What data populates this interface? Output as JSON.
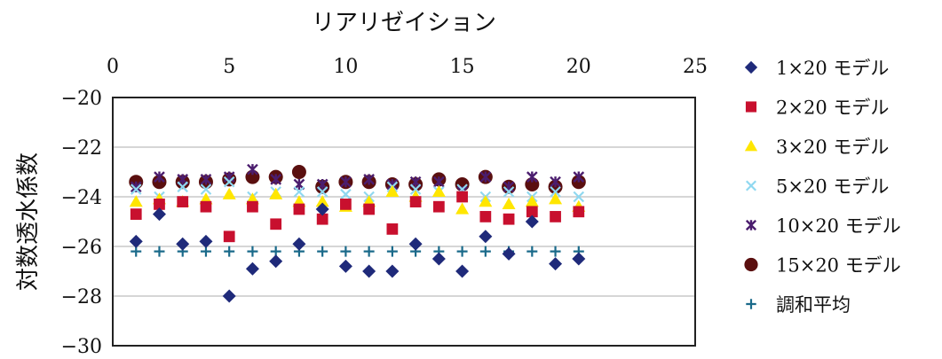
{
  "chart_data": {
    "type": "scatter",
    "title": "",
    "xlabel": "リアリゼイション",
    "ylabel": "対数透水係数",
    "xlim": [
      0,
      25
    ],
    "ylim": [
      -30,
      -20
    ],
    "x_ticks": [
      "0",
      "5",
      "10",
      "15",
      "20",
      "25"
    ],
    "y_ticks": [
      "-20",
      "-22",
      "-24",
      "-26",
      "-28",
      "-30"
    ],
    "x_axis_position": "top",
    "grid": "horizontal",
    "legend_position": "right",
    "x": [
      1,
      2,
      3,
      4,
      5,
      6,
      7,
      8,
      9,
      10,
      11,
      12,
      13,
      14,
      15,
      16,
      17,
      18,
      19,
      20
    ],
    "series": [
      {
        "name": "1×20 モデル",
        "marker": "diamond",
        "color": "#1f2a7a",
        "values": [
          -25.8,
          -24.7,
          -25.9,
          -25.8,
          -28.0,
          -26.9,
          -26.6,
          -25.9,
          -24.5,
          -26.8,
          -27.0,
          -27.0,
          -25.9,
          -26.5,
          -27.0,
          -25.6,
          -26.3,
          -25.0,
          -26.7,
          -26.5
        ]
      },
      {
        "name": "2×20 モデル",
        "marker": "square",
        "color": "#c8102e",
        "values": [
          -24.7,
          -24.3,
          -24.2,
          -24.4,
          -25.6,
          -24.4,
          -25.1,
          -24.5,
          -24.9,
          -24.3,
          -24.5,
          -25.3,
          -24.2,
          -24.4,
          -24.0,
          -24.8,
          -24.9,
          -24.6,
          -24.8,
          -24.6
        ]
      },
      {
        "name": "3×20 モデル",
        "marker": "triangle",
        "color": "#ffe600",
        "values": [
          -24.2,
          -24.1,
          -24.2,
          -24.1,
          -23.9,
          -24.1,
          -23.9,
          -24.2,
          -24.2,
          -24.4,
          -24.2,
          -23.8,
          -24.0,
          -23.8,
          -24.5,
          -24.2,
          -24.3,
          -24.2,
          -24.1,
          -24.4
        ]
      },
      {
        "name": "5×20 モデル",
        "marker": "x",
        "color": "#8fd8f0",
        "values": [
          -23.7,
          -24.0,
          -23.6,
          -23.7,
          -23.4,
          -24.0,
          -23.8,
          -23.8,
          -23.8,
          -23.9,
          -24.0,
          -23.6,
          -23.7,
          -23.8,
          -23.7,
          -24.0,
          -23.8,
          -24.0,
          -23.8,
          -24.0
        ]
      },
      {
        "name": "10×20 モデル",
        "marker": "star",
        "color": "#4b1d6e",
        "values": [
          -23.6,
          -23.2,
          -23.3,
          -23.3,
          -23.2,
          -22.9,
          -23.3,
          -23.5,
          -23.5,
          -23.4,
          -23.3,
          -23.5,
          -23.4,
          -23.4,
          -23.8,
          -23.2,
          -23.6,
          -23.2,
          -23.4,
          -23.2
        ]
      },
      {
        "name": "15×20 モデル",
        "marker": "circle",
        "color": "#5a0f0f",
        "values": [
          -23.4,
          -23.4,
          -23.4,
          -23.4,
          -23.3,
          -23.2,
          -23.2,
          -23.0,
          -23.6,
          -23.4,
          -23.4,
          -23.5,
          -23.5,
          -23.3,
          -23.5,
          -23.2,
          -23.6,
          -23.5,
          -23.6,
          -23.4
        ]
      },
      {
        "name": "調和平均",
        "marker": "plus",
        "color": "#1a6a8a",
        "values": [
          -26.2,
          -26.2,
          -26.2,
          -26.2,
          -26.2,
          -26.2,
          -26.2,
          -26.2,
          -26.2,
          -26.2,
          -26.2,
          -26.2,
          -26.2,
          -26.2,
          -26.2,
          -26.2,
          -26.2,
          -26.2,
          -26.2,
          -26.2
        ]
      }
    ]
  }
}
